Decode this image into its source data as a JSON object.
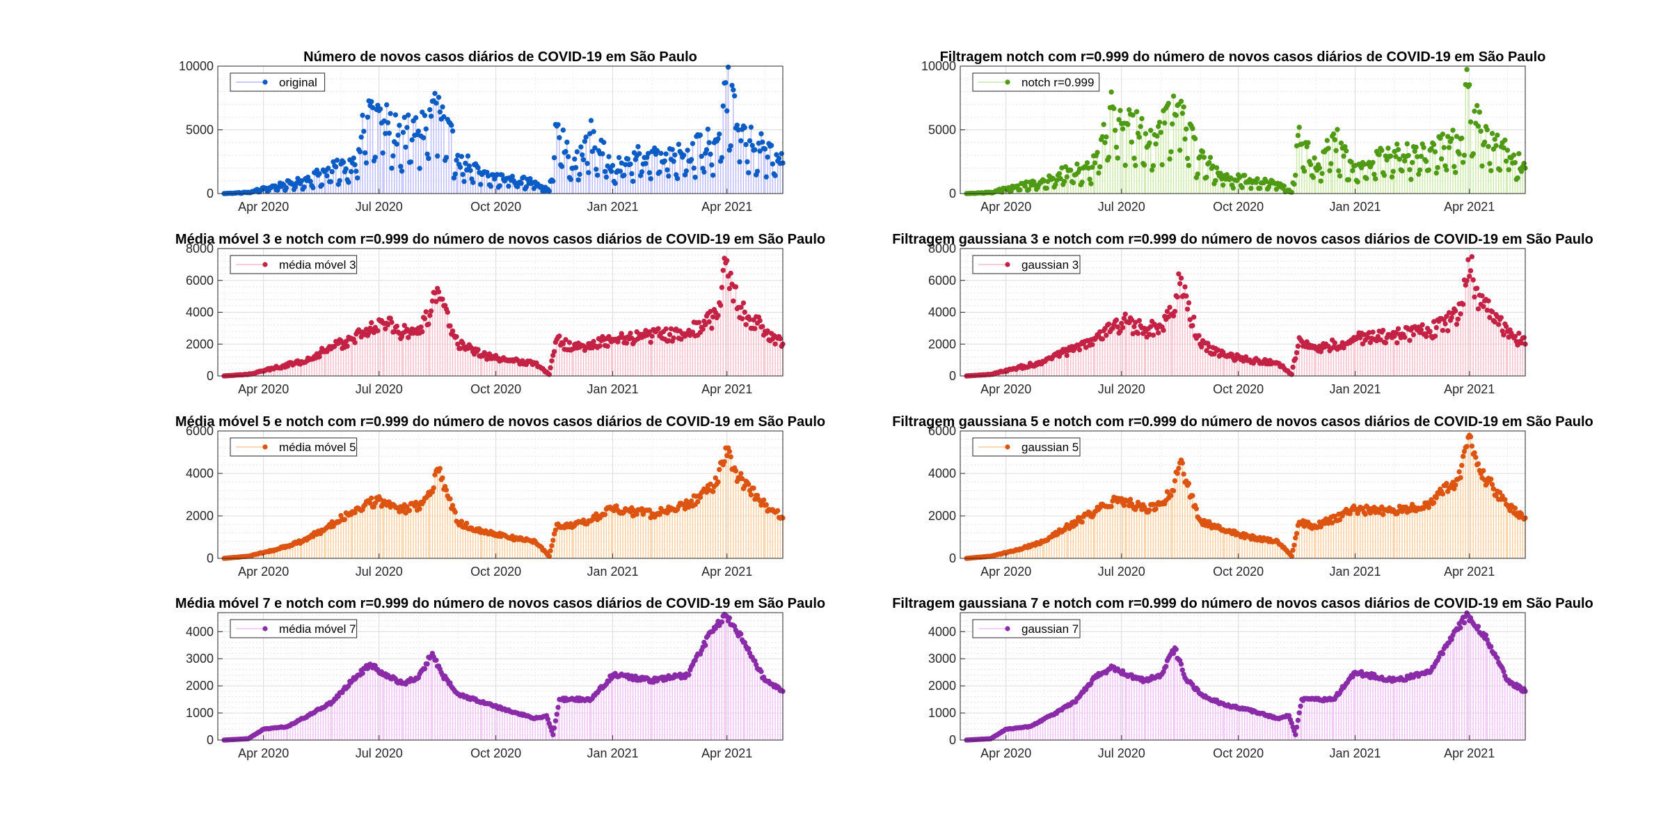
{
  "chart_data": [
    {
      "type": "line",
      "title": "Número de novos casos diários de COVID-19 em São Paulo",
      "xlabel": "",
      "ylabel": "",
      "x_range": [
        "2020-02-25",
        "2021-05-15"
      ],
      "ylim": [
        0,
        10000
      ],
      "yticks": [
        0,
        5000,
        10000
      ],
      "xticks": [
        "Apr 2020",
        "Jul 2020",
        "Oct 2020",
        "Jan 2021",
        "Apr 2021"
      ],
      "legend_position": "top-left",
      "grid": true,
      "series": [
        {
          "name": "original",
          "color": "#0b5cc5",
          "fill": "#b9b9ff"
        }
      ],
      "points": [
        [
          "2020-03-01",
          0
        ],
        [
          "2020-03-20",
          100
        ],
        [
          "2020-04-10",
          600
        ],
        [
          "2020-05-01",
          1000
        ],
        [
          "2020-05-20",
          1800
        ],
        [
          "2020-06-10",
          2400
        ],
        [
          "2020-06-24",
          6900
        ],
        [
          "2020-07-05",
          5700
        ],
        [
          "2020-07-20",
          4800
        ],
        [
          "2020-08-01",
          4900
        ],
        [
          "2020-08-15",
          7100
        ],
        [
          "2020-09-01",
          3000
        ],
        [
          "2020-09-20",
          1500
        ],
        [
          "2020-10-10",
          1200
        ],
        [
          "2020-11-01",
          900
        ],
        [
          "2020-11-12",
          200
        ],
        [
          "2020-11-18",
          5300
        ],
        [
          "2020-12-01",
          2000
        ],
        [
          "2020-12-14",
          4700
        ],
        [
          "2021-01-01",
          2200
        ],
        [
          "2021-02-01",
          3300
        ],
        [
          "2021-03-01",
          3400
        ],
        [
          "2021-03-25",
          4300
        ],
        [
          "2021-03-31",
          8700
        ],
        [
          "2021-04-10",
          5000
        ],
        [
          "2021-05-01",
          3500
        ],
        [
          "2021-05-15",
          2400
        ]
      ]
    },
    {
      "type": "line",
      "title": "Filtragem notch com r=0.999 do número de novos casos diários de COVID-19 em São Paulo",
      "xlabel": "",
      "ylabel": "",
      "x_range": [
        "2020-02-25",
        "2021-05-15"
      ],
      "ylim": [
        0,
        10000
      ],
      "yticks": [
        0,
        5000,
        10000
      ],
      "xticks": [
        "Apr 2020",
        "Jul 2020",
        "Oct 2020",
        "Jan 2021",
        "Apr 2021"
      ],
      "legend_position": "top-left",
      "grid": true,
      "series": [
        {
          "name": "notch r=0.999",
          "color": "#4e9a13",
          "fill": "#cbe9a4"
        }
      ],
      "points": [
        [
          "2020-03-01",
          0
        ],
        [
          "2020-03-20",
          100
        ],
        [
          "2020-04-10",
          600
        ],
        [
          "2020-05-01",
          1000
        ],
        [
          "2020-05-20",
          1800
        ],
        [
          "2020-06-10",
          2400
        ],
        [
          "2020-06-24",
          6800
        ],
        [
          "2020-07-05",
          5500
        ],
        [
          "2020-07-20",
          4700
        ],
        [
          "2020-08-01",
          4800
        ],
        [
          "2020-08-15",
          7000
        ],
        [
          "2020-09-01",
          2900
        ],
        [
          "2020-09-20",
          1400
        ],
        [
          "2020-10-10",
          1100
        ],
        [
          "2020-11-01",
          800
        ],
        [
          "2020-11-12",
          100
        ],
        [
          "2020-11-18",
          5200
        ],
        [
          "2020-12-01",
          2000
        ],
        [
          "2020-12-14",
          4500
        ],
        [
          "2021-01-01",
          2200
        ],
        [
          "2021-02-01",
          3300
        ],
        [
          "2021-03-01",
          3400
        ],
        [
          "2021-03-25",
          4300
        ],
        [
          "2021-03-31",
          8400
        ],
        [
          "2021-04-10",
          4900
        ],
        [
          "2021-05-01",
          3400
        ],
        [
          "2021-05-15",
          2000
        ]
      ]
    },
    {
      "type": "line",
      "title": "Média móvel 3 e notch com r=0.999 do número de novos casos diários de COVID-19 em São Paulo",
      "xlabel": "",
      "ylabel": "",
      "x_range": [
        "2020-02-25",
        "2021-05-15"
      ],
      "ylim": [
        0,
        8000
      ],
      "yticks": [
        0,
        2000,
        4000,
        6000,
        8000
      ],
      "xticks": [
        "Apr 2020",
        "Jul 2020",
        "Oct 2020",
        "Jan 2021",
        "Apr 2021"
      ],
      "legend_position": "top-left",
      "grid": true,
      "series": [
        {
          "name": "média móvel 3",
          "color": "#c42245",
          "fill": "#f6bcc8"
        }
      ],
      "points": [
        [
          "2020-03-01",
          0
        ],
        [
          "2020-03-20",
          100
        ],
        [
          "2020-04-10",
          500
        ],
        [
          "2020-05-01",
          900
        ],
        [
          "2020-05-20",
          1600
        ],
        [
          "2020-06-10",
          2300
        ],
        [
          "2020-06-24",
          3000
        ],
        [
          "2020-07-05",
          3300
        ],
        [
          "2020-07-20",
          2700
        ],
        [
          "2020-08-01",
          3000
        ],
        [
          "2020-08-10",
          3800
        ],
        [
          "2020-08-16",
          5500
        ],
        [
          "2020-09-01",
          2000
        ],
        [
          "2020-09-20",
          1300
        ],
        [
          "2020-10-10",
          1000
        ],
        [
          "2020-11-01",
          800
        ],
        [
          "2020-11-12",
          100
        ],
        [
          "2020-11-18",
          2300
        ],
        [
          "2020-12-01",
          1700
        ],
        [
          "2021-01-01",
          2300
        ],
        [
          "2021-02-01",
          2500
        ],
        [
          "2021-03-01",
          2700
        ],
        [
          "2021-03-25",
          3800
        ],
        [
          "2021-03-31",
          7100
        ],
        [
          "2021-04-10",
          4300
        ],
        [
          "2021-05-01",
          2800
        ],
        [
          "2021-05-15",
          2000
        ]
      ]
    },
    {
      "type": "line",
      "title": "Filtragem gaussiana 3 e notch com r=0.999 do número de novos casos diários de COVID-19 em São Paulo",
      "xlabel": "",
      "ylabel": "",
      "x_range": [
        "2020-02-25",
        "2021-05-15"
      ],
      "ylim": [
        0,
        8000
      ],
      "yticks": [
        0,
        2000,
        4000,
        6000,
        8000
      ],
      "xticks": [
        "Apr 2020",
        "Jul 2020",
        "Oct 2020",
        "Jan 2021",
        "Apr 2021"
      ],
      "legend_position": "top-left",
      "grid": true,
      "series": [
        {
          "name": "gaussian 3",
          "color": "#c42245",
          "fill": "#f6bcc8"
        }
      ],
      "points": [
        [
          "2020-03-01",
          0
        ],
        [
          "2020-03-20",
          100
        ],
        [
          "2020-04-10",
          500
        ],
        [
          "2020-05-01",
          900
        ],
        [
          "2020-05-20",
          1600
        ],
        [
          "2020-06-10",
          2300
        ],
        [
          "2020-06-24",
          3000
        ],
        [
          "2020-07-05",
          3400
        ],
        [
          "2020-07-20",
          2800
        ],
        [
          "2020-08-01",
          3100
        ],
        [
          "2020-08-10",
          3900
        ],
        [
          "2020-08-16",
          5800
        ],
        [
          "2020-09-01",
          2000
        ],
        [
          "2020-09-20",
          1300
        ],
        [
          "2020-10-10",
          1000
        ],
        [
          "2020-11-01",
          800
        ],
        [
          "2020-11-12",
          100
        ],
        [
          "2020-11-18",
          2400
        ],
        [
          "2020-12-01",
          1700
        ],
        [
          "2021-01-01",
          2300
        ],
        [
          "2021-02-01",
          2500
        ],
        [
          "2021-03-01",
          2800
        ],
        [
          "2021-03-25",
          3900
        ],
        [
          "2021-03-31",
          7300
        ],
        [
          "2021-04-10",
          4500
        ],
        [
          "2021-05-01",
          2800
        ],
        [
          "2021-05-15",
          2000
        ]
      ]
    },
    {
      "type": "line",
      "title": "Média móvel 5 e notch com r=0.999 do número de novos casos diários de COVID-19 em São Paulo",
      "xlabel": "",
      "ylabel": "",
      "x_range": [
        "2020-02-25",
        "2021-05-15"
      ],
      "ylim": [
        0,
        6000
      ],
      "yticks": [
        0,
        2000,
        4000,
        6000
      ],
      "xticks": [
        "Apr 2020",
        "Jul 2020",
        "Oct 2020",
        "Jan 2021",
        "Apr 2021"
      ],
      "legend_position": "top-left",
      "grid": true,
      "series": [
        {
          "name": "média móvel 5",
          "color": "#dc5410",
          "fill": "#fbcc98"
        }
      ],
      "points": [
        [
          "2020-03-01",
          0
        ],
        [
          "2020-03-20",
          100
        ],
        [
          "2020-04-10",
          400
        ],
        [
          "2020-05-01",
          800
        ],
        [
          "2020-05-20",
          1400
        ],
        [
          "2020-06-10",
          2200
        ],
        [
          "2020-06-24",
          2600
        ],
        [
          "2020-07-05",
          2700
        ],
        [
          "2020-07-20",
          2300
        ],
        [
          "2020-08-01",
          2500
        ],
        [
          "2020-08-10",
          3000
        ],
        [
          "2020-08-16",
          4200
        ],
        [
          "2020-09-01",
          1700
        ],
        [
          "2020-09-20",
          1300
        ],
        [
          "2020-10-10",
          1000
        ],
        [
          "2020-11-01",
          800
        ],
        [
          "2020-11-12",
          100
        ],
        [
          "2020-11-18",
          1600
        ],
        [
          "2020-12-01",
          1500
        ],
        [
          "2021-01-01",
          2300
        ],
        [
          "2021-02-01",
          2100
        ],
        [
          "2021-03-01",
          2500
        ],
        [
          "2021-03-25",
          3600
        ],
        [
          "2021-03-31",
          5200
        ],
        [
          "2021-04-10",
          3800
        ],
        [
          "2021-05-01",
          2500
        ],
        [
          "2021-05-15",
          1900
        ]
      ]
    },
    {
      "type": "line",
      "title": "Filtragem gaussiana 5 e notch com r=0.999 do número de novos casos diários de COVID-19 em São Paulo",
      "xlabel": "",
      "ylabel": "",
      "x_range": [
        "2020-02-25",
        "2021-05-15"
      ],
      "ylim": [
        0,
        6000
      ],
      "yticks": [
        0,
        2000,
        4000,
        6000
      ],
      "xticks": [
        "Apr 2020",
        "Jul 2020",
        "Oct 2020",
        "Jan 2021",
        "Apr 2021"
      ],
      "legend_position": "top-left",
      "grid": true,
      "series": [
        {
          "name": "gaussian 5",
          "color": "#dc5410",
          "fill": "#fbcc98"
        }
      ],
      "points": [
        [
          "2020-03-01",
          0
        ],
        [
          "2020-03-20",
          100
        ],
        [
          "2020-04-10",
          400
        ],
        [
          "2020-05-01",
          800
        ],
        [
          "2020-05-20",
          1500
        ],
        [
          "2020-06-10",
          2200
        ],
        [
          "2020-06-24",
          2700
        ],
        [
          "2020-07-05",
          2700
        ],
        [
          "2020-07-20",
          2300
        ],
        [
          "2020-08-01",
          2600
        ],
        [
          "2020-08-10",
          3200
        ],
        [
          "2020-08-16",
          4500
        ],
        [
          "2020-09-01",
          1800
        ],
        [
          "2020-09-20",
          1300
        ],
        [
          "2020-10-10",
          1000
        ],
        [
          "2020-11-01",
          800
        ],
        [
          "2020-11-12",
          100
        ],
        [
          "2020-11-18",
          1700
        ],
        [
          "2020-12-01",
          1500
        ],
        [
          "2021-01-01",
          2300
        ],
        [
          "2021-02-01",
          2200
        ],
        [
          "2021-03-01",
          2600
        ],
        [
          "2021-03-25",
          3800
        ],
        [
          "2021-03-31",
          5700
        ],
        [
          "2021-04-10",
          4000
        ],
        [
          "2021-05-01",
          2500
        ],
        [
          "2021-05-15",
          1900
        ]
      ]
    },
    {
      "type": "line",
      "title": "Média móvel 7 e notch com r=0.999 do número de novos casos diários de COVID-19 em São Paulo",
      "xlabel": "",
      "ylabel": "",
      "x_range": [
        "2020-02-25",
        "2021-05-15"
      ],
      "ylim": [
        0,
        4700
      ],
      "yticks": [
        0,
        1000,
        2000,
        3000,
        4000
      ],
      "xticks": [
        "Apr 2020",
        "Jul 2020",
        "Oct 2020",
        "Jan 2021",
        "Apr 2021"
      ],
      "legend_position": "top-left",
      "grid": true,
      "series": [
        {
          "name": "média móvel 7",
          "color": "#8a2ba8",
          "fill": "#f0bff5"
        }
      ],
      "points": [
        [
          "2020-03-01",
          0
        ],
        [
          "2020-03-20",
          50
        ],
        [
          "2020-04-01",
          400
        ],
        [
          "2020-04-20",
          500
        ],
        [
          "2020-05-10",
          1000
        ],
        [
          "2020-05-25",
          1400
        ],
        [
          "2020-06-10",
          2200
        ],
        [
          "2020-06-24",
          2800
        ],
        [
          "2020-07-05",
          2400
        ],
        [
          "2020-07-20",
          2100
        ],
        [
          "2020-08-01",
          2300
        ],
        [
          "2020-08-12",
          3200
        ],
        [
          "2020-08-20",
          2400
        ],
        [
          "2020-09-01",
          1700
        ],
        [
          "2020-09-20",
          1400
        ],
        [
          "2020-10-10",
          1100
        ],
        [
          "2020-11-01",
          800
        ],
        [
          "2020-11-10",
          900
        ],
        [
          "2020-11-15",
          200
        ],
        [
          "2020-11-20",
          1500
        ],
        [
          "2020-12-15",
          1500
        ],
        [
          "2021-01-01",
          2400
        ],
        [
          "2021-02-01",
          2200
        ],
        [
          "2021-03-01",
          2400
        ],
        [
          "2021-03-20",
          4000
        ],
        [
          "2021-03-31",
          4600
        ],
        [
          "2021-04-15",
          3600
        ],
        [
          "2021-05-01",
          2200
        ],
        [
          "2021-05-15",
          1800
        ]
      ]
    },
    {
      "type": "line",
      "title": "Filtragem gaussiana 7 e notch com r=0.999 do número de novos casos diários de COVID-19 em São Paulo",
      "xlabel": "",
      "ylabel": "",
      "x_range": [
        "2020-02-25",
        "2021-05-15"
      ],
      "ylim": [
        0,
        4700
      ],
      "yticks": [
        0,
        1000,
        2000,
        3000,
        4000
      ],
      "xticks": [
        "Apr 2020",
        "Jul 2020",
        "Oct 2020",
        "Jan 2021",
        "Apr 2021"
      ],
      "legend_position": "top-left",
      "grid": true,
      "series": [
        {
          "name": "gaussian 7",
          "color": "#8a2ba8",
          "fill": "#f0bff5"
        }
      ],
      "points": [
        [
          "2020-03-01",
          0
        ],
        [
          "2020-03-20",
          50
        ],
        [
          "2020-04-01",
          400
        ],
        [
          "2020-04-20",
          500
        ],
        [
          "2020-05-10",
          1000
        ],
        [
          "2020-05-25",
          1400
        ],
        [
          "2020-06-10",
          2300
        ],
        [
          "2020-06-24",
          2700
        ],
        [
          "2020-07-05",
          2400
        ],
        [
          "2020-07-20",
          2200
        ],
        [
          "2020-08-01",
          2400
        ],
        [
          "2020-08-12",
          3400
        ],
        [
          "2020-08-20",
          2300
        ],
        [
          "2020-09-01",
          1700
        ],
        [
          "2020-09-20",
          1300
        ],
        [
          "2020-10-10",
          1100
        ],
        [
          "2020-11-01",
          800
        ],
        [
          "2020-11-10",
          900
        ],
        [
          "2020-11-15",
          200
        ],
        [
          "2020-11-20",
          1500
        ],
        [
          "2020-12-15",
          1500
        ],
        [
          "2021-01-01",
          2500
        ],
        [
          "2021-02-01",
          2200
        ],
        [
          "2021-03-01",
          2500
        ],
        [
          "2021-03-20",
          4000
        ],
        [
          "2021-03-31",
          4600
        ],
        [
          "2021-04-15",
          3700
        ],
        [
          "2021-05-01",
          2200
        ],
        [
          "2021-05-15",
          1800
        ]
      ]
    }
  ]
}
